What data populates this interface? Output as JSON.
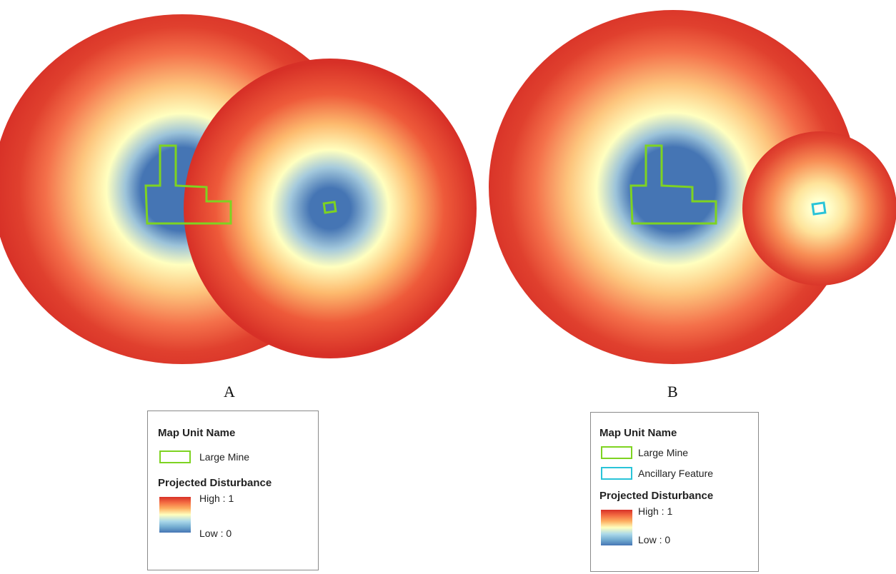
{
  "panels": [
    {
      "label": "A",
      "legend": {
        "title": "Map Unit Name",
        "items": [
          {
            "label": "Large Mine",
            "color": "#7ed321"
          }
        ],
        "disturbance_title": "Projected Disturbance",
        "high_label": "High : 1",
        "low_label": "Low : 0"
      }
    },
    {
      "label": "B",
      "legend": {
        "title": "Map Unit Name",
        "items": [
          {
            "label": "Large Mine",
            "color": "#7ed321"
          },
          {
            "label": "Ancillary Feature",
            "color": "#29c4d8"
          }
        ],
        "disturbance_title": "Projected Disturbance",
        "high_label": "High : 1",
        "low_label": "Low : 0"
      }
    }
  ],
  "colors": {
    "high": "#d73027",
    "mid": "#ffffbf",
    "low": "#4575b4",
    "large_mine_outline": "#7ed321",
    "ancillary_outline": "#29c4d8"
  }
}
